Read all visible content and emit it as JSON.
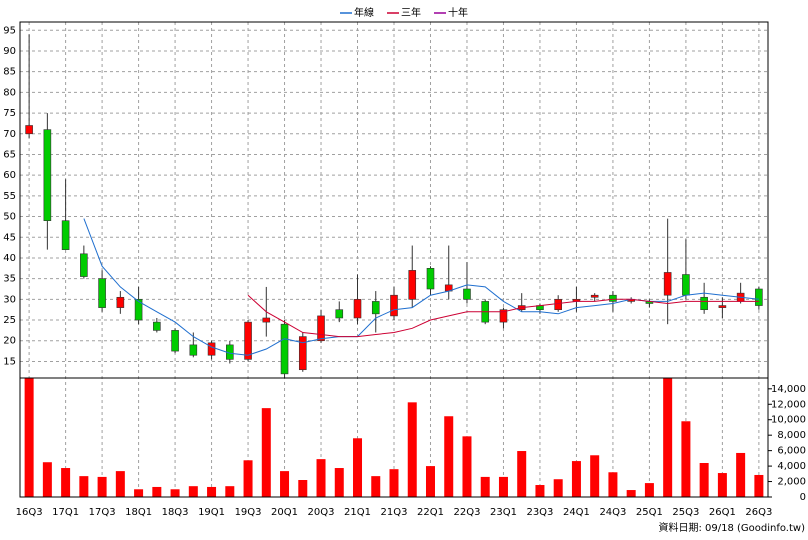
{
  "chart_data": {
    "type": "candlestick",
    "legend": "top",
    "grid": true,
    "categories": [
      "16Q3",
      null,
      "17Q1",
      null,
      "17Q3",
      null,
      "18Q1",
      null,
      "18Q3",
      null,
      "19Q1",
      null,
      "19Q3",
      null,
      "20Q1",
      null,
      "20Q3",
      null,
      "21Q1",
      null,
      "21Q3",
      null,
      "22Q1",
      null,
      "22Q3",
      null,
      "23Q1",
      null,
      "23Q3",
      null,
      "24Q1",
      null,
      "24Q3",
      null,
      "25Q1",
      null,
      "25Q3",
      null,
      "26Q1",
      null,
      "26Q3"
    ],
    "ylim": [
      11,
      97
    ],
    "yticks": [
      15,
      20,
      25,
      30,
      35,
      40,
      45,
      50,
      55,
      60,
      65,
      70,
      75,
      80,
      85,
      90,
      95
    ],
    "y2lim": [
      0,
      15400
    ],
    "y2ticks": [
      0,
      {
        "value": 2000,
        "label": "2,000"
      },
      {
        "value": 4000,
        "label": "4,000"
      },
      {
        "value": 6000,
        "label": "6,000"
      },
      {
        "value": 8000,
        "label": "8,000"
      },
      {
        "value": 10000,
        "label": "10,000"
      },
      {
        "value": 12000,
        "label": "12,000"
      },
      {
        "value": 14000,
        "label": "14,000"
      }
    ],
    "up_color": "#ff0000",
    "down_color": "#00cc00",
    "candles": {
      "open": [
        70,
        71,
        49,
        41,
        35,
        28,
        30,
        24.5,
        22.5,
        19,
        16.5,
        19,
        15.5,
        24.5,
        24,
        13,
        20,
        27.5,
        25.5,
        29.5,
        26,
        30,
        37.5,
        32,
        32.5,
        29.5,
        24.5,
        27.5,
        28.5,
        27.5,
        29.5,
        30.5,
        31,
        29.5,
        29.5,
        31,
        36,
        30.5,
        28,
        29.5,
        32.5
      ],
      "high": [
        94,
        75,
        59,
        43,
        37,
        32,
        33,
        25.5,
        23,
        22,
        20,
        20,
        25,
        33,
        25,
        22,
        27.5,
        29.5,
        36,
        32,
        33,
        43,
        38,
        43,
        39,
        30,
        28,
        31.5,
        29,
        31,
        33,
        31.5,
        32,
        30.5,
        30,
        49.5,
        44.5,
        34,
        30.5,
        34,
        33
      ],
      "low": [
        69,
        42,
        42,
        35,
        27,
        26.5,
        24,
        22,
        17,
        16,
        15.5,
        14.5,
        15,
        21,
        11,
        12.5,
        19.5,
        24.5,
        24,
        22,
        25,
        28,
        31,
        30,
        29,
        24,
        23,
        27,
        26.5,
        27,
        27,
        29.5,
        27,
        29,
        28,
        24,
        30,
        26.5,
        25.5,
        29,
        27.5
      ],
      "close": [
        72,
        49,
        42,
        35.5,
        28,
        30.5,
        25,
        22.5,
        17.5,
        16.5,
        19.5,
        15.5,
        24.5,
        25.5,
        12,
        21,
        26,
        25.5,
        30,
        26.5,
        31,
        37,
        32.5,
        33.5,
        30,
        24.5,
        27.5,
        28.5,
        27.5,
        30,
        30,
        31,
        29.5,
        30,
        29,
        36.5,
        31,
        27.5,
        28.5,
        31.5,
        28.5
      ]
    },
    "series": [
      {
        "name": "年線",
        "color": "#1f6fcf",
        "values": [
          null,
          null,
          null,
          49.5,
          38,
          33,
          29.5,
          27,
          24.5,
          21,
          18.5,
          17,
          16.5,
          18,
          20.5,
          19.5,
          20.5,
          21,
          21,
          25.5,
          27.5,
          28,
          31,
          32,
          33.5,
          33,
          29.5,
          27,
          27,
          26.5,
          28,
          28.5,
          29,
          30,
          29.5,
          29.5,
          31,
          31.5,
          31,
          30.5,
          30
        ]
      },
      {
        "name": "三年",
        "color": "#cc0033",
        "values": [
          null,
          null,
          null,
          null,
          null,
          null,
          null,
          null,
          null,
          null,
          null,
          null,
          31,
          27,
          24.5,
          22,
          21.5,
          21,
          21,
          21.5,
          22,
          23,
          25,
          26,
          27,
          27,
          27,
          28,
          28.5,
          29,
          29.5,
          29.5,
          30,
          30,
          29.5,
          29,
          29.5,
          29.5,
          29.5,
          29.5,
          29.5
        ]
      },
      {
        "name": "十年",
        "color": "#990099",
        "values": [
          null,
          null,
          null,
          null,
          null,
          null,
          null,
          null,
          null,
          null,
          null,
          null,
          null,
          null,
          null,
          null,
          null,
          null,
          null,
          null,
          null,
          null,
          null,
          null,
          null,
          null,
          null,
          null,
          null,
          null,
          null,
          null,
          null,
          null,
          null,
          null,
          null,
          null,
          null,
          null,
          null
        ]
      }
    ],
    "volume": {
      "color": "#ff0000",
      "values": [
        15400,
        4500,
        3750,
        2700,
        2600,
        3350,
        1000,
        1300,
        1000,
        1400,
        1300,
        1400,
        4750,
        11500,
        3350,
        2200,
        4900,
        3750,
        7600,
        2700,
        3600,
        12250,
        4000,
        10450,
        7850,
        2600,
        2600,
        5950,
        1550,
        2300,
        4650,
        5400,
        3200,
        900,
        1800,
        15350,
        9800,
        4400,
        3100,
        5700,
        2850
      ]
    },
    "note": "資料日期: 09/18  (Goodinfo.tw)"
  }
}
